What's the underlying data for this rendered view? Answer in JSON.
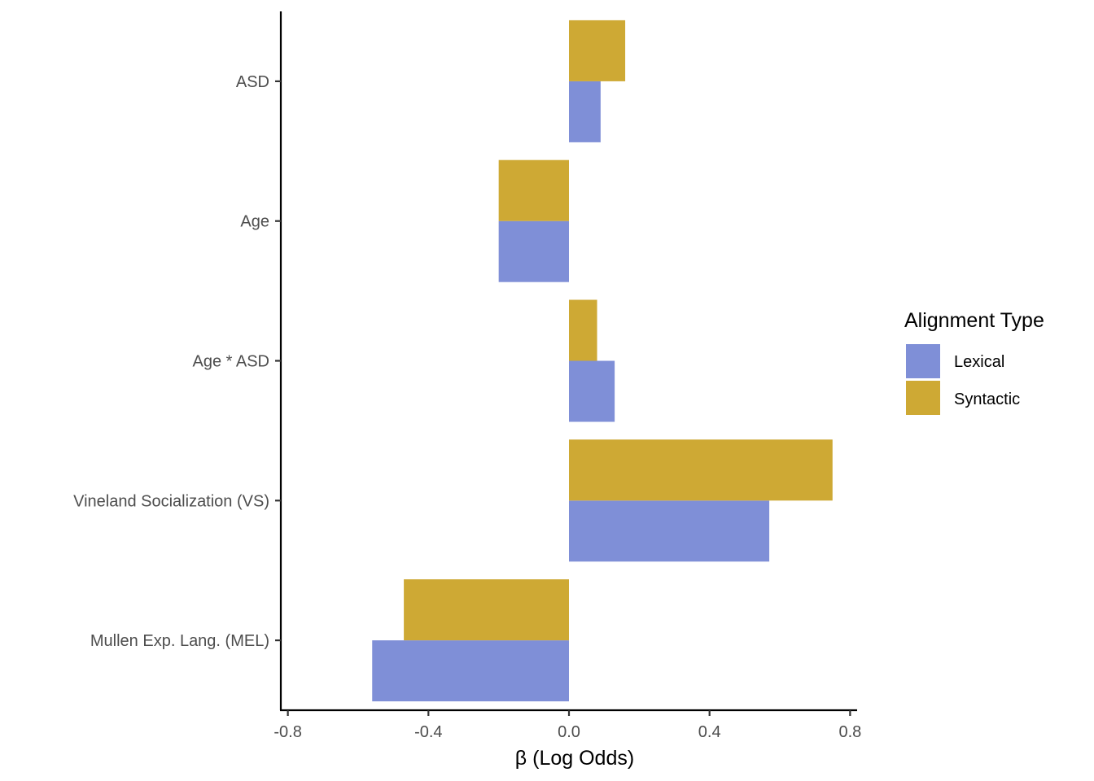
{
  "chart_data": {
    "type": "bar",
    "orientation": "horizontal",
    "categories": [
      "ASD",
      "Age",
      "Age * ASD",
      "Vineland Socialization (VS)",
      "Mullen Exp. Lang. (MEL)"
    ],
    "series": [
      {
        "name": "Lexical",
        "color": "#7f8fd7",
        "values": [
          0.09,
          -0.2,
          0.13,
          0.57,
          -0.56
        ]
      },
      {
        "name": "Syntactic",
        "color": "#cea934",
        "values": [
          0.16,
          -0.2,
          0.08,
          0.75,
          -0.47
        ]
      }
    ],
    "xlabel": "β (Log Odds)",
    "ylabel": "",
    "xlim": [
      -0.82,
      0.82
    ],
    "xticks": [
      -0.8,
      -0.4,
      0.0,
      0.4,
      0.8
    ],
    "xtick_labels": [
      "-0.8",
      "-0.4",
      "0.0",
      "0.4",
      "0.8"
    ],
    "legend": {
      "title": "Alignment Type",
      "position": "right"
    },
    "grid": false
  }
}
